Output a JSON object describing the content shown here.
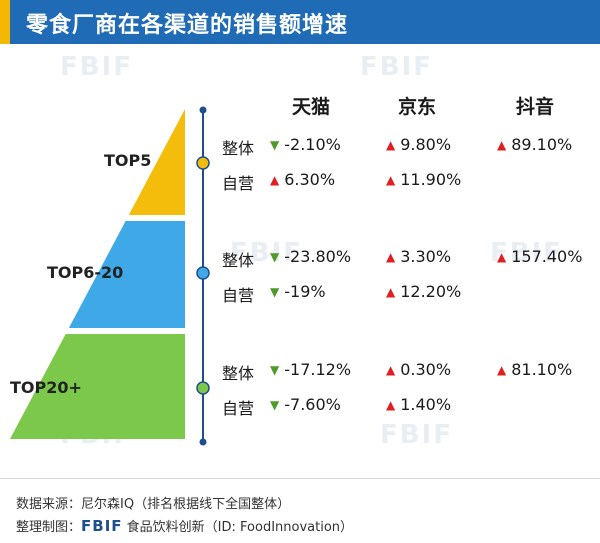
{
  "title": "零食厂商在各渠道的销售额增速",
  "watermark": "FBIF",
  "colors": {
    "header": "#1f6bb5",
    "accent": "#f5b800",
    "tier_top5": "#f5bd0b",
    "tier_top6_20": "#3fa9e8",
    "tier_top20plus": "#7cc84a",
    "up": "#e02020",
    "down": "#4f9a2a"
  },
  "chart_data": {
    "type": "table",
    "columns": [
      "天猫",
      "京东",
      "抖音"
    ],
    "tiers": [
      {
        "name": "TOP5",
        "rows": [
          {
            "label": "整体",
            "cells": [
              {
                "value": "-2.10%",
                "dir": "down"
              },
              {
                "value": "9.80%",
                "dir": "up"
              },
              {
                "value": "89.10%",
                "dir": "up"
              }
            ]
          },
          {
            "label": "自营",
            "cells": [
              {
                "value": "6.30%",
                "dir": "up"
              },
              {
                "value": "11.90%",
                "dir": "up"
              },
              null
            ]
          }
        ]
      },
      {
        "name": "TOP6-20",
        "rows": [
          {
            "label": "整体",
            "cells": [
              {
                "value": "-23.80%",
                "dir": "down"
              },
              {
                "value": "3.30%",
                "dir": "up"
              },
              {
                "value": "157.40%",
                "dir": "up"
              }
            ]
          },
          {
            "label": "自营",
            "cells": [
              {
                "value": "-19%",
                "dir": "down"
              },
              {
                "value": "12.20%",
                "dir": "up"
              },
              null
            ]
          }
        ]
      },
      {
        "name": "TOP20+",
        "rows": [
          {
            "label": "整体",
            "cells": [
              {
                "value": "-17.12%",
                "dir": "down"
              },
              {
                "value": "0.30%",
                "dir": "up"
              },
              {
                "value": "81.10%",
                "dir": "up"
              }
            ]
          },
          {
            "label": "自营",
            "cells": [
              {
                "value": "-7.60%",
                "dir": "down"
              },
              {
                "value": "1.40%",
                "dir": "up"
              },
              null
            ]
          }
        ]
      }
    ]
  },
  "footer": {
    "source": "数据来源：尼尔森IQ（排名根据线下全国整体）",
    "maker_prefix": "整理制图：",
    "brand": "FBIF",
    "maker_suffix": "食品饮料创新（ID: FoodInnovation）"
  }
}
